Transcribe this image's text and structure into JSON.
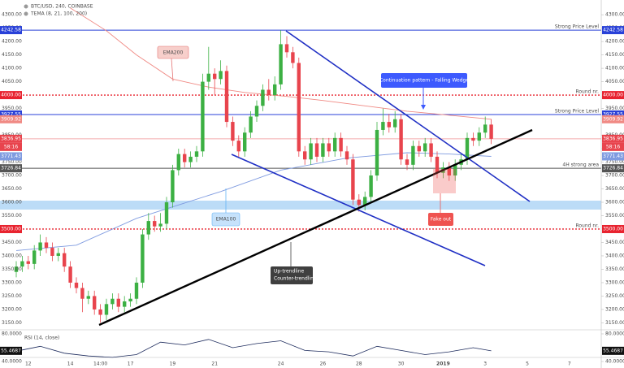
{
  "chart_data": {
    "type": "candlestick",
    "title": "BTC/USD, 240, COINBASE",
    "indicator": "TEMA (8, 21, 100, 200)",
    "up_color": "#3cb043",
    "down_color": "#e8444d",
    "categories": [
      null,
      null,
      "12",
      null,
      null,
      null,
      null,
      null,
      null,
      "14",
      null,
      null,
      null,
      null,
      "14:00",
      null,
      null,
      null,
      null,
      "17",
      null,
      null,
      null,
      null,
      null,
      null,
      "19",
      null,
      null,
      null,
      null,
      null,
      null,
      "21",
      null,
      null,
      null,
      null,
      null,
      null,
      null,
      null,
      null,
      null,
      "24",
      null,
      null,
      null,
      null,
      null,
      null,
      "26",
      null,
      null,
      null,
      null,
      null,
      "28",
      null,
      null,
      null,
      null,
      null,
      null,
      "30",
      null,
      null,
      null,
      null,
      null,
      null,
      "2019",
      null,
      null,
      null,
      null,
      null,
      null,
      "3",
      null,
      null,
      null,
      null,
      null,
      null,
      "5",
      null,
      null,
      null,
      null,
      null,
      null,
      "7"
    ],
    "open": [
      3340,
      3360,
      3380,
      3370,
      3420,
      3450,
      3430,
      3400,
      3410,
      3360,
      3300,
      3280,
      3240,
      3250,
      3200,
      3180,
      3220,
      3240,
      3210,
      3230,
      3240,
      3300,
      3480,
      3530,
      3510,
      3520,
      3600,
      3720,
      3780,
      3750,
      3770,
      3790,
      4050,
      4080,
      4060,
      4090,
      3900,
      3830,
      3790,
      3860,
      3920,
      3960,
      4020,
      4000,
      4040,
      4190,
      4160,
      4120,
      3790,
      3760,
      3820,
      3770,
      3820,
      3790,
      3840,
      3790,
      3760,
      3610,
      3590,
      3620,
      3700,
      3870,
      3900,
      3880,
      3910,
      3760,
      3740,
      3810,
      3790,
      3820,
      3770,
      3710,
      3730,
      3700,
      3740,
      3760,
      3840,
      3830,
      3860,
      3890,
      null,
      null,
      null,
      null,
      null,
      null,
      null,
      null,
      null,
      null,
      null,
      null,
      null
    ],
    "high": [
      3380,
      3400,
      3400,
      3440,
      3480,
      3470,
      3450,
      3430,
      3430,
      3380,
      3320,
      3300,
      3270,
      3270,
      3220,
      3240,
      3260,
      3260,
      3250,
      3260,
      3320,
      3500,
      3560,
      3550,
      3560,
      3620,
      3740,
      3800,
      3800,
      3790,
      3810,
      4080,
      4180,
      4100,
      4130,
      4110,
      3920,
      3850,
      3880,
      3940,
      3980,
      4040,
      4060,
      4070,
      4242,
      4220,
      4180,
      4140,
      3810,
      3840,
      3840,
      3840,
      3840,
      3860,
      3860,
      3810,
      3780,
      3630,
      3640,
      3720,
      3900,
      3950,
      3930,
      3940,
      3930,
      3780,
      3830,
      3830,
      3840,
      3840,
      3790,
      3750,
      3750,
      3760,
      3780,
      3860,
      3860,
      3880,
      3920,
      3910,
      null,
      null,
      null,
      null,
      null,
      null,
      null,
      null,
      null,
      null,
      null,
      null,
      null
    ],
    "low": [
      3320,
      3340,
      3350,
      3350,
      3400,
      3410,
      3380,
      3380,
      3340,
      3280,
      3260,
      3190,
      3220,
      3180,
      3150,
      3160,
      3200,
      3190,
      3190,
      3210,
      3220,
      3280,
      3460,
      3490,
      3490,
      3500,
      3580,
      3700,
      3730,
      3730,
      3750,
      3770,
      4020,
      4000,
      4040,
      3880,
      3810,
      3770,
      3770,
      3840,
      3900,
      3940,
      3980,
      3980,
      4020,
      4140,
      4100,
      3770,
      3740,
      3740,
      3750,
      3750,
      3770,
      3770,
      3770,
      3740,
      3590,
      3565,
      3570,
      3600,
      3680,
      3850,
      3860,
      3860,
      3740,
      3720,
      3720,
      3770,
      3770,
      3750,
      3690,
      3690,
      3680,
      3680,
      3720,
      3740,
      3810,
      3810,
      3840,
      3817,
      null,
      null,
      null,
      null,
      null,
      null,
      null,
      null,
      null,
      null,
      null,
      null,
      null
    ],
    "close": [
      3360,
      3380,
      3370,
      3420,
      3450,
      3430,
      3400,
      3410,
      3360,
      3300,
      3280,
      3240,
      3250,
      3200,
      3180,
      3220,
      3240,
      3210,
      3230,
      3240,
      3300,
      3480,
      3530,
      3510,
      3520,
      3600,
      3720,
      3780,
      3750,
      3770,
      3790,
      4050,
      4080,
      4060,
      4090,
      3900,
      3830,
      3790,
      3860,
      3920,
      3960,
      4020,
      4000,
      4040,
      4190,
      4160,
      4120,
      3790,
      3760,
      3820,
      3770,
      3820,
      3790,
      3840,
      3790,
      3760,
      3610,
      3590,
      3620,
      3700,
      3870,
      3900,
      3880,
      3910,
      3760,
      3740,
      3810,
      3790,
      3820,
      3770,
      3710,
      3730,
      3700,
      3740,
      3760,
      3840,
      3830,
      3860,
      3890,
      3837,
      null,
      null,
      null,
      null,
      null,
      null,
      null,
      null,
      null,
      null,
      null,
      null,
      null
    ],
    "ylim": [
      3127,
      4355
    ],
    "yticks": [
      {
        "value": 3150,
        "label": "3150.00"
      },
      {
        "value": 3200,
        "label": "3200.00"
      },
      {
        "value": 3250,
        "label": "3250.00"
      },
      {
        "value": 3300,
        "label": "3300.00"
      },
      {
        "value": 3350,
        "label": "3350.00"
      },
      {
        "value": 3400,
        "label": "3400.00"
      },
      {
        "value": 3450,
        "label": "3450.00"
      },
      {
        "value": 3550,
        "label": "3550.00"
      },
      {
        "value": 3600,
        "label": "3600.00"
      },
      {
        "value": 3650,
        "label": "3650.00"
      },
      {
        "value": 3700,
        "label": "3700.00"
      },
      {
        "value": 3750,
        "label": "3750.00"
      },
      {
        "value": 3800,
        "label": "3800.00"
      },
      {
        "value": 3850,
        "label": "3850.00"
      },
      {
        "value": 3950,
        "label": "3950.00"
      },
      {
        "value": 4050,
        "label": "4050.00"
      },
      {
        "value": 4100,
        "label": "4100.00"
      },
      {
        "value": 4150,
        "label": "4150.00"
      },
      {
        "value": 4200,
        "label": "4200.00"
      },
      {
        "value": 4250,
        "label": "4250.00"
      },
      {
        "value": 4300,
        "label": "4300.00"
      }
    ],
    "series": [
      {
        "name": "EMA200",
        "color": "#f08a84",
        "x": [
          9,
          15,
          20,
          26,
          32,
          38,
          45,
          51,
          58,
          65,
          72,
          79
        ],
        "values": [
          4325,
          4240,
          4150,
          4060,
          4030,
          4010,
          3995,
          3980,
          3960,
          3940,
          3925,
          3909.92
        ]
      },
      {
        "name": "EMA100",
        "color": "#7f9be0",
        "x": [
          0,
          10,
          20,
          27,
          34,
          44,
          55,
          65,
          72,
          79
        ],
        "values": [
          3420,
          3440,
          3540,
          3590,
          3640,
          3720,
          3765,
          3785,
          3780,
          3771.43
        ]
      }
    ],
    "levels": [
      {
        "value": 4242.58,
        "color": "#2941d8",
        "line": "solid",
        "text": "Strong Price Level"
      },
      {
        "value": 4000,
        "label": "4000.00",
        "color": "#e8232f",
        "line": "dotted",
        "text": "Round nr."
      },
      {
        "value": 3927.55,
        "color": "#2941d8",
        "line": "solid",
        "text": "Strong Price Level"
      },
      {
        "value": 3909.92,
        "color": "#f08a84",
        "line": "none"
      },
      {
        "value": 3836.95,
        "color": "#e8444d",
        "line": "faint"
      },
      {
        "value": 3771.43,
        "color": "#7f9be0",
        "line": "none"
      },
      {
        "value": 3726.84,
        "color": "#555555",
        "line": "solid",
        "text": "4H strong area"
      },
      {
        "value": 3500,
        "label": "3500.00",
        "color": "#e8232f",
        "line": "dotted",
        "text": "Round nr."
      }
    ],
    "countdown": "58:16",
    "annotations": [
      "Continuation pattern - Falling Wedge",
      "Fake out",
      "Up-trendline",
      "Counter-trendline"
    ],
    "rsi": {
      "title": "RSI (14, close)",
      "color": "#1c2a5c",
      "ylim": [
        40,
        80
      ],
      "yticks": [
        {
          "value": 80,
          "label": "80.0000"
        },
        {
          "value": 40,
          "label": "40.0000"
        }
      ],
      "x": [
        0,
        4,
        8,
        12,
        16,
        20,
        24,
        28,
        32,
        36,
        40,
        44,
        48,
        52,
        56,
        60,
        64,
        68,
        72,
        76,
        79
      ],
      "values": [
        55,
        62,
        52,
        48,
        46,
        50,
        68,
        64,
        72,
        60,
        66,
        70,
        56,
        54,
        48,
        62,
        56,
        50,
        54,
        60,
        55.4687
      ]
    }
  }
}
